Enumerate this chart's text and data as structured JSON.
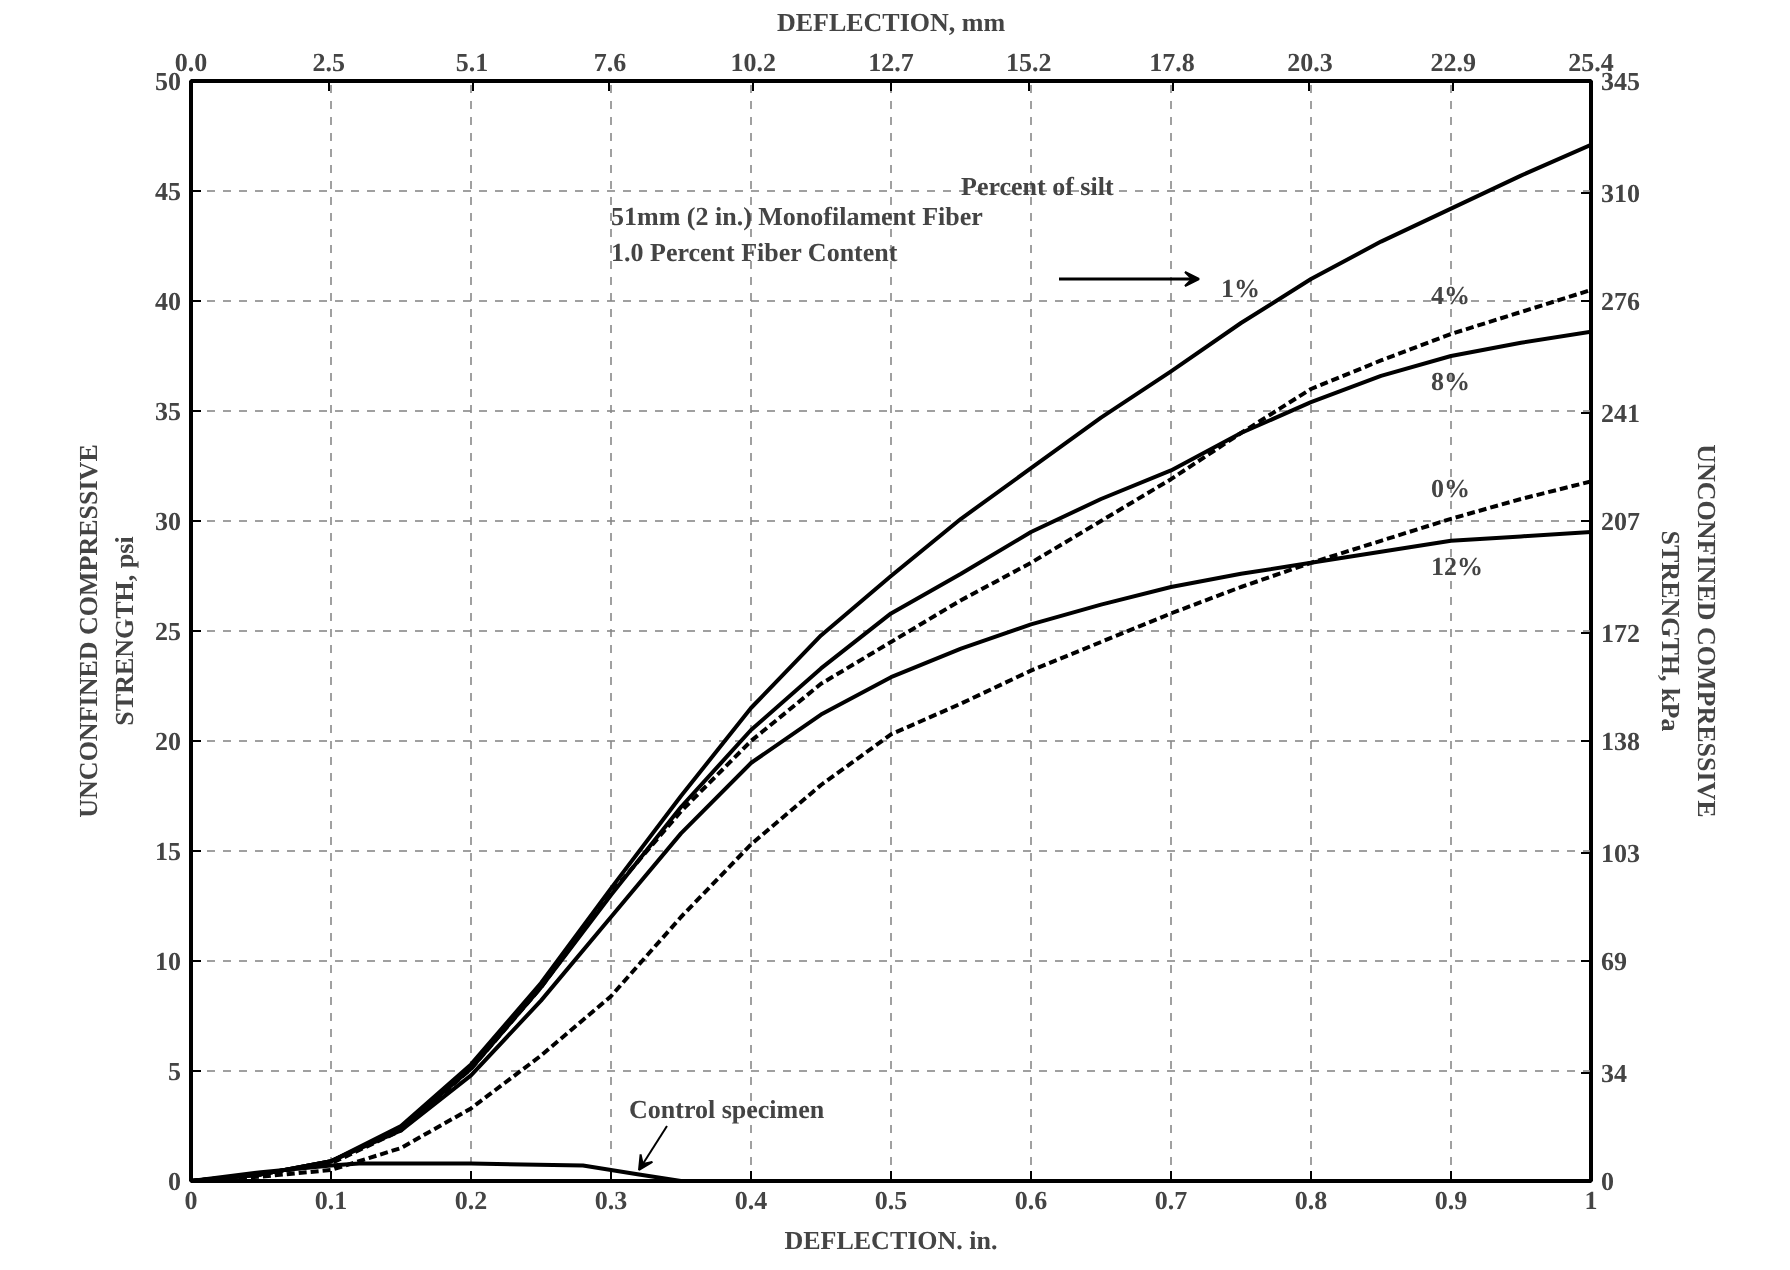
{
  "chart_data": {
    "type": "line",
    "xlabel": "DEFLECTION. in.",
    "x2label": "DEFLECTION, mm",
    "ylabel": "UNCONFINED COMPRESSIVE\nSTRENGTH, psi",
    "y2label": "UNCONFINED COMPRESSIVE\nSTRENGTH, kPa",
    "annotations": [
      "51mm (2 in.) Monofilament Fiber",
      "1.0 Percent Fiber Content",
      "Percent of silt"
    ],
    "x": [
      0,
      0.05,
      0.1,
      0.15,
      0.2,
      0.25,
      0.3,
      0.35,
      0.4,
      0.45,
      0.5,
      0.55,
      0.6,
      0.65,
      0.7,
      0.75,
      0.8,
      0.85,
      0.9,
      0.95,
      1.0
    ],
    "series": [
      {
        "name": "1%",
        "color": "#000000",
        "line_style": "solid",
        "values": [
          0,
          0.3,
          0.9,
          2.5,
          5.3,
          9,
          13.3,
          17.5,
          21.5,
          24.8,
          27.5,
          30.1,
          32.4,
          34.7,
          36.8,
          39,
          41,
          42.7,
          44.2,
          45.7,
          47.1
        ]
      },
      {
        "name": "4%",
        "color": "#000000",
        "line_style": "dashed",
        "values": [
          0,
          0.3,
          0.8,
          2.3,
          5.1,
          8.8,
          13.1,
          16.8,
          20,
          22.6,
          24.5,
          26.4,
          28.1,
          30,
          31.9,
          34,
          36,
          37.3,
          38.5,
          39.5,
          40.5
        ]
      },
      {
        "name": "8%",
        "color": "#000000",
        "line_style": "solid",
        "values": [
          0,
          0.3,
          0.9,
          2.4,
          5.1,
          8.8,
          13,
          17,
          20.5,
          23.3,
          25.8,
          27.6,
          29.5,
          31,
          32.3,
          34,
          35.4,
          36.6,
          37.5,
          38.1,
          38.6
        ]
      },
      {
        "name": "0%",
        "color": "#000000",
        "line_style": "dashed",
        "values": [
          0,
          0.2,
          0.5,
          1.5,
          3.3,
          5.7,
          8.4,
          12,
          15.3,
          18,
          20.3,
          21.7,
          23.2,
          24.5,
          25.8,
          27,
          28.1,
          29.1,
          30.1,
          31,
          31.8
        ]
      },
      {
        "name": "12%",
        "color": "#000000",
        "line_style": "solid",
        "values": [
          0,
          0.3,
          0.9,
          2.3,
          4.8,
          8.2,
          12,
          15.8,
          19,
          21.2,
          22.9,
          24.2,
          25.3,
          26.2,
          27,
          27.6,
          28.1,
          28.6,
          29.1,
          29.3,
          29.5
        ]
      },
      {
        "name": "Control specimen",
        "color": "#000000",
        "line_style": "solid",
        "x": [
          0,
          0.05,
          0.1,
          0.12,
          0.2,
          0.28,
          0.32,
          0.35
        ],
        "values": [
          0,
          0.4,
          0.7,
          0.8,
          0.8,
          0.7,
          0.3,
          0
        ]
      }
    ],
    "xlim": [
      0,
      1
    ],
    "xticks": [
      0,
      0.1,
      0.2,
      0.3,
      0.4,
      0.5,
      0.6,
      0.7,
      0.8,
      0.9,
      1
    ],
    "ylim": [
      0,
      50
    ],
    "yticks": [
      0,
      5,
      10,
      15,
      20,
      25,
      30,
      35,
      40,
      45,
      50
    ],
    "y2lim": [
      0,
      345
    ],
    "y2ticks": [
      0,
      34,
      69,
      103,
      138,
      172,
      207,
      241,
      276,
      310,
      345
    ],
    "x2lim": [
      0,
      25.4
    ],
    "x2ticks": [
      {
        "value": 0,
        "label": "0.0"
      },
      2.5,
      5.1,
      7.6,
      10.2,
      12.7,
      15.2,
      17.8,
      20.3,
      22.9,
      25.4
    ],
    "grid": true,
    "marker": "none"
  }
}
